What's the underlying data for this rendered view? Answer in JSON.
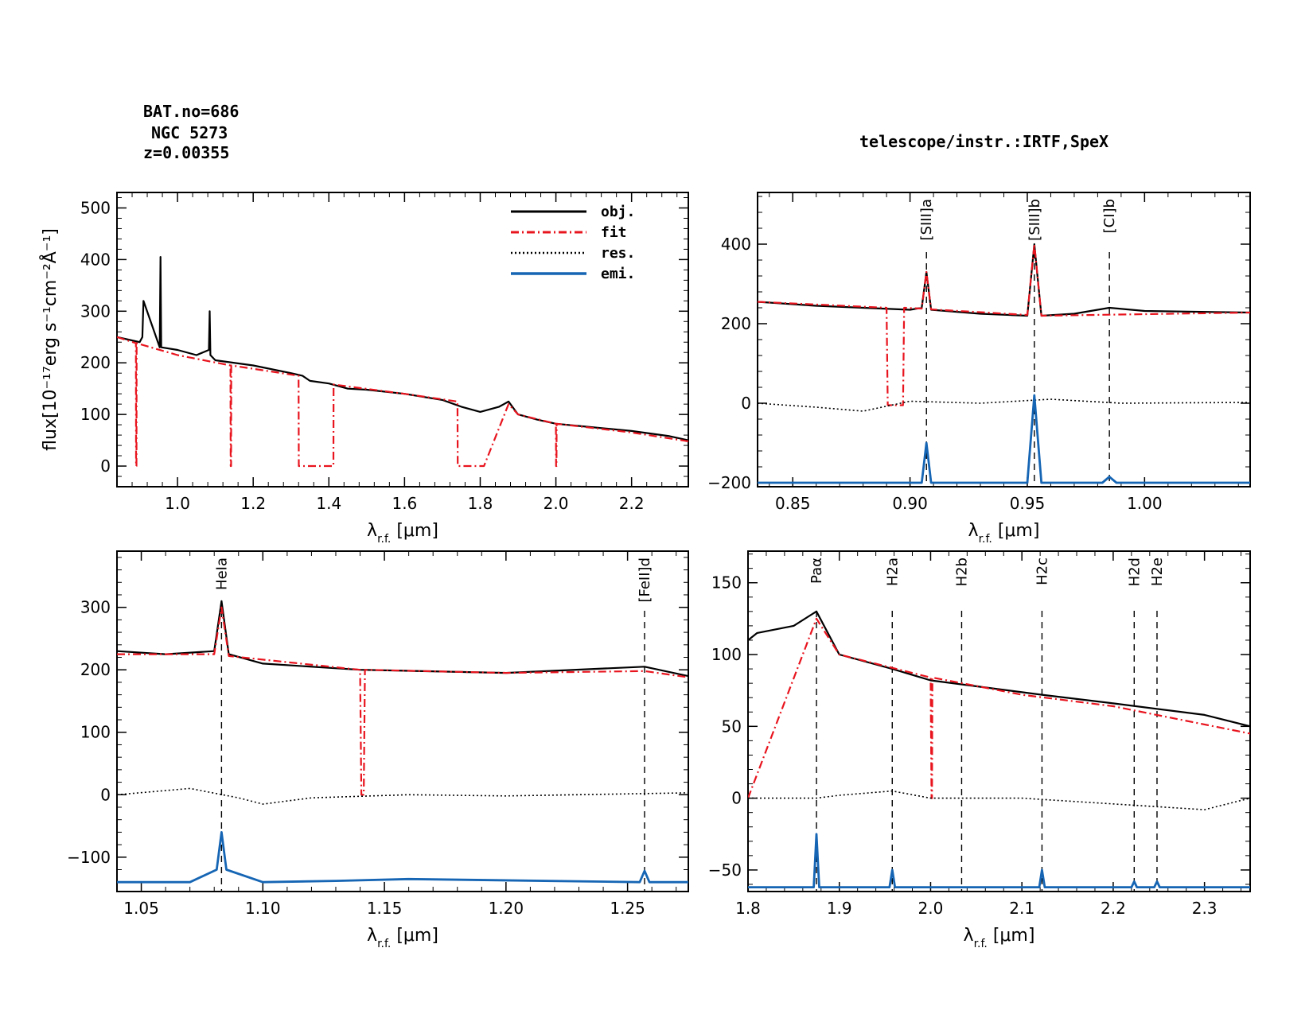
{
  "header": {
    "bat_no": "BAT.no=686",
    "object": "NGC 5273",
    "redshift": "z=0.00355",
    "instrument": "telescope/instr.:IRTF,SpeX"
  },
  "colors": {
    "obj": "#000000",
    "fit": "#e8141e",
    "res": "#000000",
    "emi": "#1565b4"
  },
  "chart_data": [
    {
      "type": "line",
      "panel": "full",
      "title": "",
      "xlabel": "λr.f. [μm]",
      "ylabel": "flux[10⁻¹⁷erg s⁻¹cm⁻²Å⁻¹]",
      "xlim": [
        0.84,
        2.35
      ],
      "ylim": [
        -40,
        530
      ],
      "xticks": [
        1.0,
        1.2,
        1.4,
        1.6,
        1.8,
        2.0,
        2.2
      ],
      "xtick_labels": [
        "1.0",
        "1.2",
        "1.4",
        "1.6",
        "1.8",
        "2.0",
        "2.2"
      ],
      "yticks": [
        0,
        100,
        200,
        300,
        400,
        500
      ],
      "ytick_labels": [
        "0",
        "100",
        "200",
        "300",
        "400",
        "500"
      ],
      "legend": {
        "placement": "top-right",
        "entries": [
          "obj.",
          "fit",
          "res.",
          "emi."
        ]
      },
      "series": [
        {
          "name": "obj.",
          "x": [
            0.84,
            0.87,
            0.9,
            0.907,
            0.91,
            0.953,
            0.955,
            0.957,
            1.0,
            1.05,
            1.083,
            1.085,
            1.087,
            1.1,
            1.2,
            1.3,
            1.33,
            1.35,
            1.4,
            1.45,
            1.5,
            1.6,
            1.7,
            1.75,
            1.8,
            1.85,
            1.875,
            1.9,
            1.95,
            2.0,
            2.1,
            2.2,
            2.3,
            2.35
          ],
          "y": [
            250,
            245,
            240,
            250,
            320,
            230,
            405,
            230,
            225,
            215,
            225,
            300,
            215,
            205,
            195,
            180,
            175,
            165,
            160,
            150,
            148,
            140,
            128,
            115,
            105,
            115,
            125,
            100,
            90,
            82,
            75,
            68,
            58,
            50
          ]
        },
        {
          "name": "fit",
          "x": [
            0.84,
            0.89,
            0.8905,
            0.8915,
            0.892,
            1.0,
            1.14,
            1.1405,
            1.1415,
            1.142,
            1.32,
            1.3205,
            1.412,
            1.4125,
            1.6,
            1.74,
            1.7405,
            1.81,
            1.875,
            1.9,
            2.0,
            2.0005,
            2.0015,
            2.002,
            2.2,
            2.35
          ],
          "y": [
            250,
            238,
            0,
            0,
            238,
            215,
            195,
            0,
            0,
            195,
            175,
            0,
            0,
            158,
            140,
            125,
            0,
            0,
            120,
            100,
            82,
            0,
            0,
            82,
            65,
            48
          ]
        }
      ]
    },
    {
      "type": "line",
      "panel": "zoom-1",
      "xlabel": "λr.f. [μm]",
      "xlim": [
        0.835,
        1.045
      ],
      "ylim": [
        -210,
        530
      ],
      "xticks": [
        0.85,
        0.9,
        0.95,
        1.0
      ],
      "xtick_labels": [
        "0.85",
        "0.90",
        "0.95",
        "1.00"
      ],
      "yticks": [
        -200,
        0,
        200,
        400
      ],
      "ytick_labels": [
        "−200",
        "0",
        "200",
        "400"
      ],
      "lines": [
        {
          "label": "[SIII]a",
          "x": 0.907
        },
        {
          "label": "[SIII]b",
          "x": 0.953
        },
        {
          "label": "[CI]b",
          "x": 0.985
        }
      ],
      "series": [
        {
          "name": "obj.",
          "x": [
            0.835,
            0.86,
            0.9,
            0.905,
            0.907,
            0.909,
            0.93,
            0.95,
            0.953,
            0.956,
            0.97,
            0.985,
            1.0,
            1.045
          ],
          "y": [
            255,
            245,
            235,
            240,
            330,
            235,
            225,
            220,
            400,
            220,
            225,
            240,
            232,
            228
          ]
        },
        {
          "name": "fit",
          "x": [
            0.835,
            0.89,
            0.8905,
            0.897,
            0.8975,
            0.905,
            0.907,
            0.909,
            0.95,
            0.953,
            0.956,
            1.045
          ],
          "y": [
            255,
            240,
            -5,
            -5,
            240,
            238,
            330,
            236,
            222,
            400,
            220,
            228
          ]
        },
        {
          "name": "res.",
          "x": [
            0.835,
            0.86,
            0.88,
            0.9,
            0.93,
            0.96,
            0.99,
            1.045
          ],
          "y": [
            0,
            -10,
            -20,
            5,
            0,
            10,
            0,
            2
          ]
        },
        {
          "name": "emi.",
          "x": [
            0.835,
            0.905,
            0.907,
            0.909,
            0.95,
            0.953,
            0.956,
            0.982,
            0.985,
            0.988,
            1.045
          ],
          "y": [
            -200,
            -200,
            -100,
            -200,
            -200,
            20,
            -200,
            -200,
            -185,
            -200,
            -200
          ]
        }
      ]
    },
    {
      "type": "line",
      "panel": "zoom-2",
      "xlabel": "λr.f. [μm]",
      "xlim": [
        1.04,
        1.275
      ],
      "ylim": [
        -155,
        390
      ],
      "xticks": [
        1.05,
        1.1,
        1.15,
        1.2,
        1.25
      ],
      "xtick_labels": [
        "1.05",
        "1.10",
        "1.15",
        "1.20",
        "1.25"
      ],
      "yticks": [
        -100,
        0,
        100,
        200,
        300
      ],
      "ytick_labels": [
        "−100",
        "0",
        "100",
        "200",
        "300"
      ],
      "lines": [
        {
          "label": "HeIa",
          "x": 1.083
        },
        {
          "label": "[FeII]d",
          "x": 1.257
        }
      ],
      "series": [
        {
          "name": "obj.",
          "x": [
            1.04,
            1.06,
            1.08,
            1.083,
            1.086,
            1.1,
            1.14,
            1.2,
            1.257,
            1.275
          ],
          "y": [
            230,
            225,
            230,
            310,
            225,
            210,
            200,
            195,
            205,
            190
          ]
        },
        {
          "name": "fit",
          "x": [
            1.04,
            1.08,
            1.083,
            1.086,
            1.14,
            1.1405,
            1.1415,
            1.142,
            1.2,
            1.257,
            1.275
          ],
          "y": [
            225,
            225,
            300,
            222,
            200,
            0,
            0,
            200,
            195,
            198,
            188
          ]
        },
        {
          "name": "res.",
          "x": [
            1.04,
            1.07,
            1.09,
            1.1,
            1.12,
            1.16,
            1.2,
            1.275
          ],
          "y": [
            0,
            10,
            -5,
            -15,
            -5,
            0,
            -2,
            3
          ]
        },
        {
          "name": "emi.",
          "x": [
            1.04,
            1.07,
            1.081,
            1.083,
            1.085,
            1.1,
            1.13,
            1.16,
            1.255,
            1.257,
            1.259,
            1.275
          ],
          "y": [
            -140,
            -140,
            -120,
            -60,
            -120,
            -140,
            -138,
            -135,
            -140,
            -122,
            -140,
            -140
          ]
        }
      ]
    },
    {
      "type": "line",
      "panel": "zoom-3",
      "xlabel": "λr.f. [μm]",
      "xlim": [
        1.8,
        2.35
      ],
      "ylim": [
        -65,
        172
      ],
      "xticks": [
        1.8,
        1.9,
        2.0,
        2.1,
        2.2,
        2.3
      ],
      "xtick_labels": [
        "1.8",
        "1.9",
        "2.0",
        "2.1",
        "2.2",
        "2.3"
      ],
      "yticks": [
        -50,
        0,
        50,
        100,
        150
      ],
      "ytick_labels": [
        "−50",
        "0",
        "50",
        "100",
        "150"
      ],
      "lines": [
        {
          "label": "Paα",
          "x": 1.875
        },
        {
          "label": "H2a",
          "x": 1.958
        },
        {
          "label": "H2b",
          "x": 2.034
        },
        {
          "label": "H2c",
          "x": 2.122
        },
        {
          "label": "H2d",
          "x": 2.223
        },
        {
          "label": "H2e",
          "x": 2.248
        }
      ],
      "series": [
        {
          "name": "obj.",
          "x": [
            1.8,
            1.81,
            1.85,
            1.875,
            1.9,
            1.958,
            2.0,
            2.122,
            2.2,
            2.3,
            2.35
          ],
          "y": [
            110,
            115,
            120,
            130,
            100,
            90,
            82,
            72,
            66,
            58,
            50
          ]
        },
        {
          "name": "fit",
          "x": [
            1.8,
            1.875,
            1.9,
            2.0,
            2.001,
            2.0015,
            2.002,
            2.1,
            2.2,
            2.35
          ],
          "y": [
            0,
            125,
            100,
            84,
            0,
            0,
            84,
            72,
            64,
            45
          ]
        },
        {
          "name": "res.",
          "x": [
            1.8,
            1.875,
            1.9,
            1.958,
            2.0,
            2.1,
            2.3,
            2.35
          ],
          "y": [
            0,
            0,
            2,
            5,
            0,
            0,
            -8,
            0
          ]
        },
        {
          "name": "emi.",
          "x": [
            1.8,
            1.872,
            1.875,
            1.878,
            1.955,
            1.958,
            1.961,
            2.119,
            2.122,
            2.125,
            2.22,
            2.223,
            2.226,
            2.245,
            2.248,
            2.251,
            2.35
          ],
          "y": [
            -62,
            -62,
            -25,
            -62,
            -62,
            -50,
            -62,
            -62,
            -50,
            -62,
            -62,
            -58,
            -62,
            -62,
            -58,
            -62,
            -62
          ]
        }
      ]
    }
  ]
}
